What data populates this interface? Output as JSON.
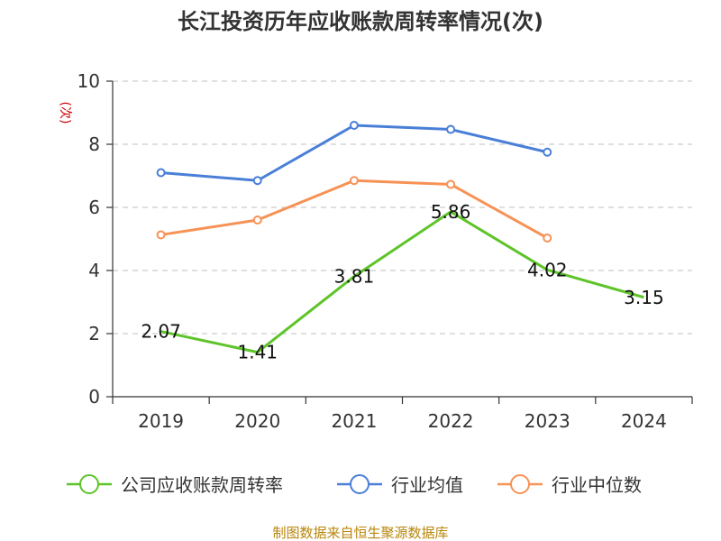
{
  "chart_data": {
    "type": "line",
    "title": "长江投资历年应收账款周转率情况(次)",
    "ylabel": "(次)",
    "xlabel": "",
    "categories": [
      "2019",
      "2020",
      "2021",
      "2022",
      "2023",
      "2024"
    ],
    "ylim": [
      0,
      10
    ],
    "yticks": [
      0,
      2,
      4,
      6,
      8,
      10
    ],
    "grid": true,
    "legend_position": "bottom",
    "series": [
      {
        "name": "公司应收账款周转率",
        "color": "#5ec429",
        "values": [
          2.07,
          1.41,
          3.81,
          5.86,
          4.02,
          3.15
        ],
        "labels": [
          "2.07",
          "1.41",
          "3.81",
          "5.86",
          "4.02",
          "3.15"
        ]
      },
      {
        "name": "行业均值",
        "color": "#4a7fd8",
        "values": [
          7.1,
          6.85,
          8.6,
          8.47,
          7.75,
          null
        ]
      },
      {
        "name": "行业中位数",
        "color": "#f79255",
        "values": [
          5.13,
          5.6,
          6.85,
          6.73,
          5.03,
          null
        ]
      }
    ]
  },
  "source": "制图数据来自恒生聚源数据库"
}
